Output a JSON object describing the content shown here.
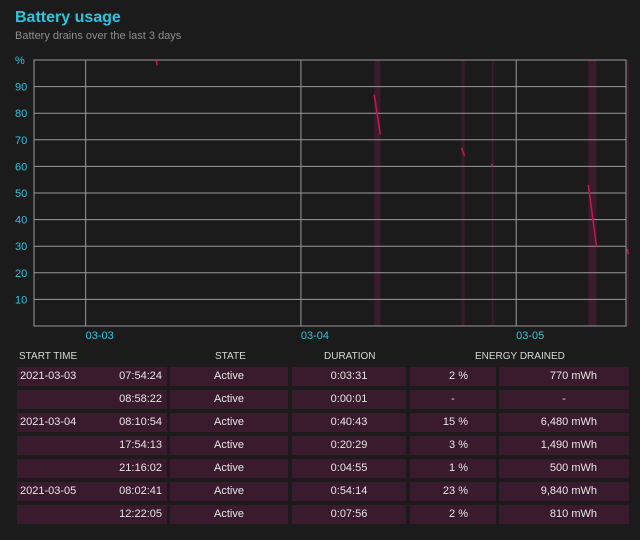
{
  "header": {
    "title": "Battery usage",
    "subtitle": "Battery drains over the last 3 days"
  },
  "chart_data": {
    "type": "line",
    "title": "Battery usage",
    "subtitle": "Battery drains over the last 3 days",
    "ylabel": "%",
    "y_ticks": [
      10,
      20,
      30,
      40,
      50,
      60,
      70,
      80,
      90
    ],
    "ylim": [
      0,
      100
    ],
    "x_ticks": [
      "03-03",
      "03-04",
      "03-05"
    ],
    "xlim_days": [
      2.76,
      5.51
    ],
    "grid": true,
    "colors": {
      "axis_label": "#2fc3e0",
      "grid": "#9a9a9a",
      "line": "#c0184a",
      "band": "#3a1a2d"
    },
    "active_bands": [
      {
        "start": "2021-03-04 08:10",
        "end": "2021-03-04 08:51"
      },
      {
        "start": "2021-03-04 17:54",
        "end": "2021-03-04 18:15"
      },
      {
        "start": "2021-03-04 21:16",
        "end": "2021-03-04 21:21"
      },
      {
        "start": "2021-03-05 08:02",
        "end": "2021-03-05 08:57"
      },
      {
        "start": "2021-03-05 12:22",
        "end": "2021-03-05 12:30"
      }
    ],
    "series": [
      {
        "segments": [
          {
            "points": [
              [
                "2021-03-03 07:54",
                100
              ],
              [
                "2021-03-03 07:58",
                98
              ]
            ]
          },
          {
            "points": [
              [
                "2021-03-04 08:10",
                87
              ],
              [
                "2021-03-04 08:51",
                72
              ]
            ]
          },
          {
            "points": [
              [
                "2021-03-04 17:54",
                67
              ],
              [
                "2021-03-04 18:15",
                64
              ]
            ]
          },
          {
            "points": [
              [
                "2021-03-04 21:16",
                61
              ],
              [
                "2021-03-04 21:21",
                60
              ]
            ]
          },
          {
            "points": [
              [
                "2021-03-05 08:02",
                53
              ],
              [
                "2021-03-05 08:57",
                30
              ]
            ]
          },
          {
            "points": [
              [
                "2021-03-05 12:22",
                29
              ],
              [
                "2021-03-05 12:30",
                27
              ]
            ]
          }
        ]
      }
    ]
  },
  "table": {
    "headers": {
      "start_time": "START TIME",
      "state": "STATE",
      "duration": "DURATION",
      "energy_drained": "ENERGY DRAINED"
    },
    "rows": [
      {
        "date": "2021-03-03",
        "time": "07:54:24",
        "state": "Active",
        "duration": "0:03:31",
        "percent": "2 %",
        "mwh": "770 mWh"
      },
      {
        "date": "",
        "time": "08:58:22",
        "state": "Active",
        "duration": "0:00:01",
        "percent": "-",
        "mwh": "-"
      },
      {
        "date": "2021-03-04",
        "time": "08:10:54",
        "state": "Active",
        "duration": "0:40:43",
        "percent": "15 %",
        "mwh": "6,480 mWh"
      },
      {
        "date": "",
        "time": "17:54:13",
        "state": "Active",
        "duration": "0:20:29",
        "percent": "3 %",
        "mwh": "1,490 mWh"
      },
      {
        "date": "",
        "time": "21:16:02",
        "state": "Active",
        "duration": "0:04:55",
        "percent": "1 %",
        "mwh": "500 mWh"
      },
      {
        "date": "2021-03-05",
        "time": "08:02:41",
        "state": "Active",
        "duration": "0:54:14",
        "percent": "23 %",
        "mwh": "9,840 mWh"
      },
      {
        "date": "",
        "time": "12:22:05",
        "state": "Active",
        "duration": "0:07:56",
        "percent": "2 %",
        "mwh": "810 mWh"
      }
    ]
  }
}
